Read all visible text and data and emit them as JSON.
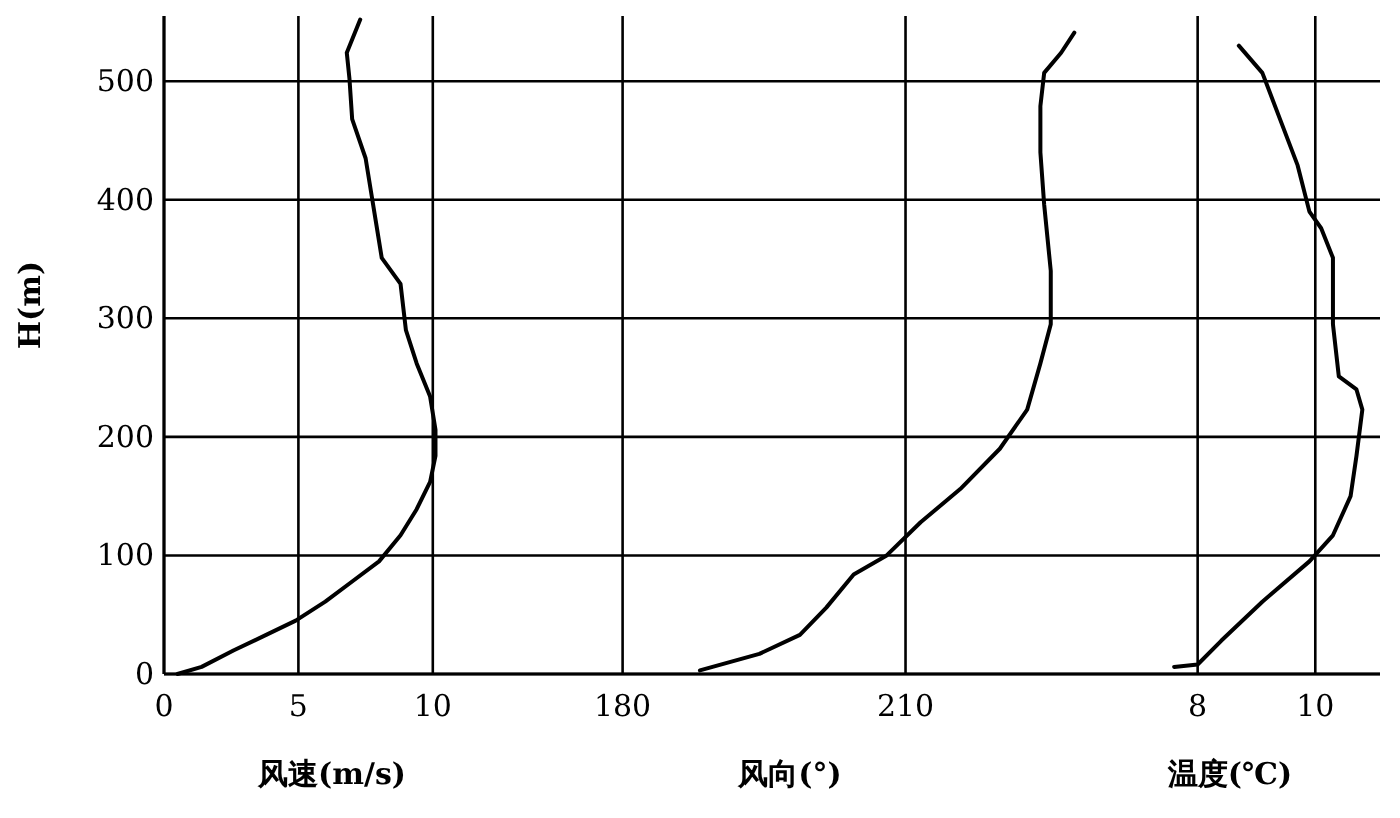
{
  "chart_data": [
    {
      "type": "line",
      "xlabel": "风速(m/s)",
      "ylabel": "H(m)",
      "xlim": [
        0,
        12.5
      ],
      "xticks": [
        0,
        5,
        10
      ],
      "ylim": [
        0,
        555
      ],
      "yticks": [
        0,
        100,
        200,
        300,
        400,
        500
      ],
      "grid": true,
      "marker": "none",
      "series": [
        {
          "color": "#000000",
          "x": [
            0.5,
            1.4,
            2.6,
            3.8,
            4.9,
            6.0,
            7.0,
            8.0,
            8.8,
            9.4,
            9.9,
            10.1,
            10.1,
            9.9,
            9.4,
            9.0,
            8.8,
            8.1,
            7.9,
            7.7,
            7.5,
            7.0,
            6.9,
            6.8,
            7.3
          ],
          "values": [
            0,
            6,
            20,
            33,
            45,
            61,
            78,
            95,
            117,
            139,
            162,
            184,
            206,
            234,
            262,
            290,
            329,
            351,
            379,
            407,
            435,
            468,
            502,
            524,
            552
          ]
        }
      ]
    },
    {
      "type": "line",
      "xlabel": "风向(°)",
      "xlim": [
        167,
        228.5
      ],
      "xticks": [
        180,
        210
      ],
      "ylim": [
        0,
        555
      ],
      "yticks": [
        0,
        100,
        200,
        300,
        400,
        500
      ],
      "grid": true,
      "tick_labels": "x",
      "marker": "none",
      "series": [
        {
          "color": "#000000",
          "x": [
            188.2,
            194.5,
            198.8,
            201.6,
            204.5,
            208,
            211.6,
            215.8,
            220,
            222.9,
            224.3,
            225.4,
            225.4,
            224.7,
            224.3,
            224.3,
            224.7,
            226.5,
            227.9
          ],
          "values": [
            3,
            17,
            33,
            56,
            84,
            100,
            128,
            156,
            190,
            223,
            262,
            295,
            340,
            396,
            440,
            479,
            507,
            524,
            541
          ]
        }
      ]
    },
    {
      "type": "line",
      "xlabel": "温度(℃)",
      "xlim": [
        6,
        11.1
      ],
      "xticks": [
        8,
        10
      ],
      "ylim": [
        0,
        555
      ],
      "yticks": [
        0,
        100,
        200,
        300,
        400,
        500
      ],
      "grid": true,
      "tick_labels": "x",
      "marker": "none",
      "series": [
        {
          "color": "#000000",
          "x": [
            7.6,
            8.0,
            8.4,
            9.1,
            9.9,
            10.3,
            10.6,
            10.7,
            10.8,
            10.7,
            10.4,
            10.3,
            10.3,
            10.1,
            9.9,
            9.7,
            9.4,
            9.1,
            8.7
          ],
          "values": [
            6,
            8,
            28,
            61,
            95,
            117,
            150,
            184,
            223,
            240,
            251,
            295,
            351,
            376,
            390,
            429,
            468,
            507,
            530
          ]
        }
      ]
    }
  ]
}
